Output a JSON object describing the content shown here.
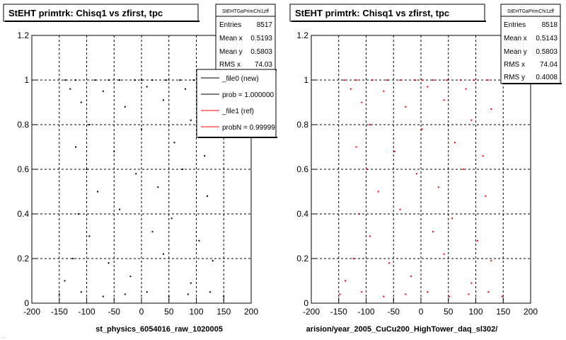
{
  "panels": [
    {
      "title": "StEHT primtrk: Chisq1  vs zfirst, tpc",
      "stats": {
        "name": "StEHTGaPrimChi1zff",
        "rows": [
          {
            "label": "Entries",
            "value": "8517"
          },
          {
            "label": "Mean x",
            "value": "0.5193"
          },
          {
            "label": "Mean y",
            "value": "0.5803"
          },
          {
            "label": "RMS x",
            "value": "74.03"
          }
        ]
      },
      "legend": [
        {
          "label": "_file0 (new)",
          "color": "#000000"
        },
        {
          "label": "prob = 1.000000",
          "color": "#000000"
        },
        {
          "label": "_file1 (ref)",
          "color": "#ff0000"
        },
        {
          "label": "probN = 0.99999",
          "color": "#ff0000"
        }
      ],
      "x_caption": "st_physics_6054016_raw_1020005"
    },
    {
      "title": "StEHT primtrk: Chisq1  vs zfirst, tpc",
      "stats": {
        "name": "StEHTGaPrimChi1zff",
        "rows": [
          {
            "label": "Entries",
            "value": "8518"
          },
          {
            "label": "Mean x",
            "value": "0.5143"
          },
          {
            "label": "Mean y",
            "value": "0.5803"
          },
          {
            "label": "RMS x",
            "value": "74.04"
          },
          {
            "label": "RMS y",
            "value": "0.4008"
          }
        ]
      },
      "x_caption": "arision/year_2005_CuCu200_HighTower_daq_sl302/"
    }
  ],
  "footer_text": "...",
  "chart_data": [
    {
      "type": "scatter",
      "title": "StEHT primtrk: Chisq1  vs zfirst, tpc",
      "xlim": [
        -200,
        200
      ],
      "ylim": [
        0,
        1.2
      ],
      "x_ticks": [
        -200,
        -150,
        -100,
        -50,
        0,
        50,
        100,
        150,
        200
      ],
      "y_ticks": [
        0,
        0.2,
        0.4,
        0.6,
        0.8,
        1,
        1.2
      ],
      "grid": true,
      "color": "#000000",
      "points": [
        [
          -139,
          1
        ],
        [
          -120,
          1
        ],
        [
          -85,
          1
        ],
        [
          -60,
          1
        ],
        [
          -40,
          1
        ],
        [
          -12,
          1
        ],
        [
          0,
          1
        ],
        [
          20,
          1
        ],
        [
          45,
          1
        ],
        [
          70,
          1
        ],
        [
          95,
          1
        ],
        [
          120,
          1
        ],
        [
          148,
          1
        ],
        [
          -130,
          0.96
        ],
        [
          -70,
          0.95
        ],
        [
          10,
          0.97
        ],
        [
          80,
          0.96
        ],
        [
          -110,
          0.9
        ],
        [
          -30,
          0.88
        ],
        [
          40,
          0.91
        ],
        [
          130,
          0.87
        ],
        [
          -95,
          0.8
        ],
        [
          0,
          0.78
        ],
        [
          90,
          0.82
        ],
        [
          -120,
          0.7
        ],
        [
          -50,
          0.68
        ],
        [
          60,
          0.72
        ],
        [
          115,
          0.66
        ],
        [
          -100,
          0.6
        ],
        [
          -10,
          0.58
        ],
        [
          75,
          0.6
        ],
        [
          -80,
          0.5
        ],
        [
          30,
          0.52
        ],
        [
          120,
          0.48
        ],
        [
          -115,
          0.4
        ],
        [
          -40,
          0.42
        ],
        [
          55,
          0.38
        ],
        [
          -95,
          0.3
        ],
        [
          20,
          0.32
        ],
        [
          105,
          0.28
        ],
        [
          -125,
          0.2
        ],
        [
          -60,
          0.18
        ],
        [
          40,
          0.22
        ],
        [
          130,
          0.19
        ],
        [
          -140,
          0.1
        ],
        [
          -20,
          0.12
        ],
        [
          90,
          0.09
        ],
        [
          -150,
          0.04
        ],
        [
          -110,
          0.05
        ],
        [
          -70,
          0.03
        ],
        [
          -30,
          0.04
        ],
        [
          10,
          0.05
        ],
        [
          50,
          0.03
        ],
        [
          85,
          0.04
        ],
        [
          125,
          0.05
        ],
        [
          150,
          0.03
        ]
      ]
    },
    {
      "type": "scatter",
      "title": "StEHT primtrk: Chisq1  vs zfirst, tpc",
      "xlim": [
        -200,
        200
      ],
      "ylim": [
        0,
        1.2
      ],
      "x_ticks": [
        -200,
        -150,
        -100,
        -50,
        0,
        50,
        100,
        150,
        200
      ],
      "y_ticks": [
        0,
        0.2,
        0.4,
        0.6,
        0.8,
        1,
        1.2
      ],
      "grid": true,
      "color": "#ff0000",
      "points": [
        [
          -140,
          1
        ],
        [
          -118,
          1
        ],
        [
          -88,
          1
        ],
        [
          -62,
          1
        ],
        [
          -38,
          1
        ],
        [
          -10,
          1
        ],
        [
          2,
          1
        ],
        [
          22,
          1
        ],
        [
          47,
          1
        ],
        [
          72,
          1
        ],
        [
          97,
          1
        ],
        [
          122,
          1
        ],
        [
          147,
          1
        ],
        [
          -128,
          0.96
        ],
        [
          -68,
          0.95
        ],
        [
          12,
          0.97
        ],
        [
          82,
          0.96
        ],
        [
          -108,
          0.9
        ],
        [
          -28,
          0.88
        ],
        [
          42,
          0.91
        ],
        [
          128,
          0.87
        ],
        [
          -93,
          0.8
        ],
        [
          2,
          0.78
        ],
        [
          92,
          0.82
        ],
        [
          -118,
          0.7
        ],
        [
          -48,
          0.68
        ],
        [
          62,
          0.72
        ],
        [
          113,
          0.66
        ],
        [
          -98,
          0.6
        ],
        [
          -8,
          0.58
        ],
        [
          77,
          0.6
        ],
        [
          -78,
          0.5
        ],
        [
          32,
          0.52
        ],
        [
          118,
          0.48
        ],
        [
          -113,
          0.4
        ],
        [
          -38,
          0.42
        ],
        [
          57,
          0.38
        ],
        [
          -93,
          0.3
        ],
        [
          22,
          0.32
        ],
        [
          103,
          0.28
        ],
        [
          -123,
          0.2
        ],
        [
          -58,
          0.18
        ],
        [
          42,
          0.22
        ],
        [
          128,
          0.19
        ],
        [
          -138,
          0.1
        ],
        [
          -18,
          0.12
        ],
        [
          92,
          0.09
        ],
        [
          -148,
          0.04
        ],
        [
          -108,
          0.05
        ],
        [
          -68,
          0.03
        ],
        [
          -28,
          0.04
        ],
        [
          12,
          0.05
        ],
        [
          52,
          0.03
        ],
        [
          87,
          0.04
        ],
        [
          123,
          0.05
        ],
        [
          148,
          0.03
        ]
      ]
    }
  ]
}
